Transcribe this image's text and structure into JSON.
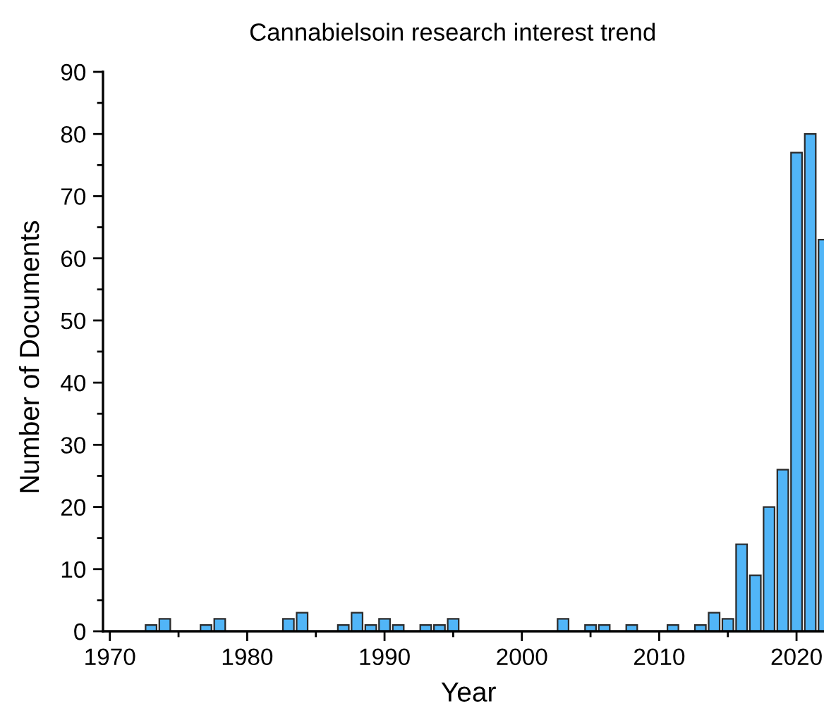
{
  "chart_data": {
    "type": "bar",
    "title": "Cannabielsoin research interest trend",
    "xlabel": "Year",
    "ylabel": "Number of Documents",
    "x": [
      1973,
      1974,
      1977,
      1978,
      1983,
      1984,
      1987,
      1988,
      1989,
      1990,
      1991,
      1993,
      1994,
      1995,
      2003,
      2005,
      2006,
      2008,
      2011,
      2013,
      2014,
      2015,
      2016,
      2017,
      2018,
      2019,
      2020,
      2021,
      2022
    ],
    "values": [
      1,
      2,
      1,
      2,
      2,
      3,
      1,
      3,
      1,
      2,
      1,
      1,
      1,
      2,
      2,
      1,
      1,
      1,
      1,
      1,
      3,
      2,
      14,
      9,
      20,
      26,
      77,
      80,
      63
    ],
    "color": "#51b5f7",
    "xlim": [
      1969.5,
      2022
    ],
    "xticks": [
      1970,
      {
        "value": 1975,
        "label": null
      },
      1980,
      {
        "value": 1985,
        "label": null
      },
      1990,
      {
        "value": 1995,
        "label": null
      },
      2000,
      {
        "value": 2005,
        "label": null
      },
      2010,
      {
        "value": 2015,
        "label": null
      },
      2020
    ],
    "ylim": [
      0,
      90
    ],
    "yticks": [
      0,
      {
        "value": 5,
        "label": null
      },
      10,
      {
        "value": 15,
        "label": null
      },
      20,
      {
        "value": 25,
        "label": null
      },
      30,
      {
        "value": 35,
        "label": null
      },
      40,
      {
        "value": 45,
        "label": null
      },
      50,
      {
        "value": 55,
        "label": null
      },
      60,
      {
        "value": 65,
        "label": null
      },
      70,
      {
        "value": 75,
        "label": null
      },
      80,
      {
        "value": 85,
        "label": null
      },
      90
    ]
  }
}
